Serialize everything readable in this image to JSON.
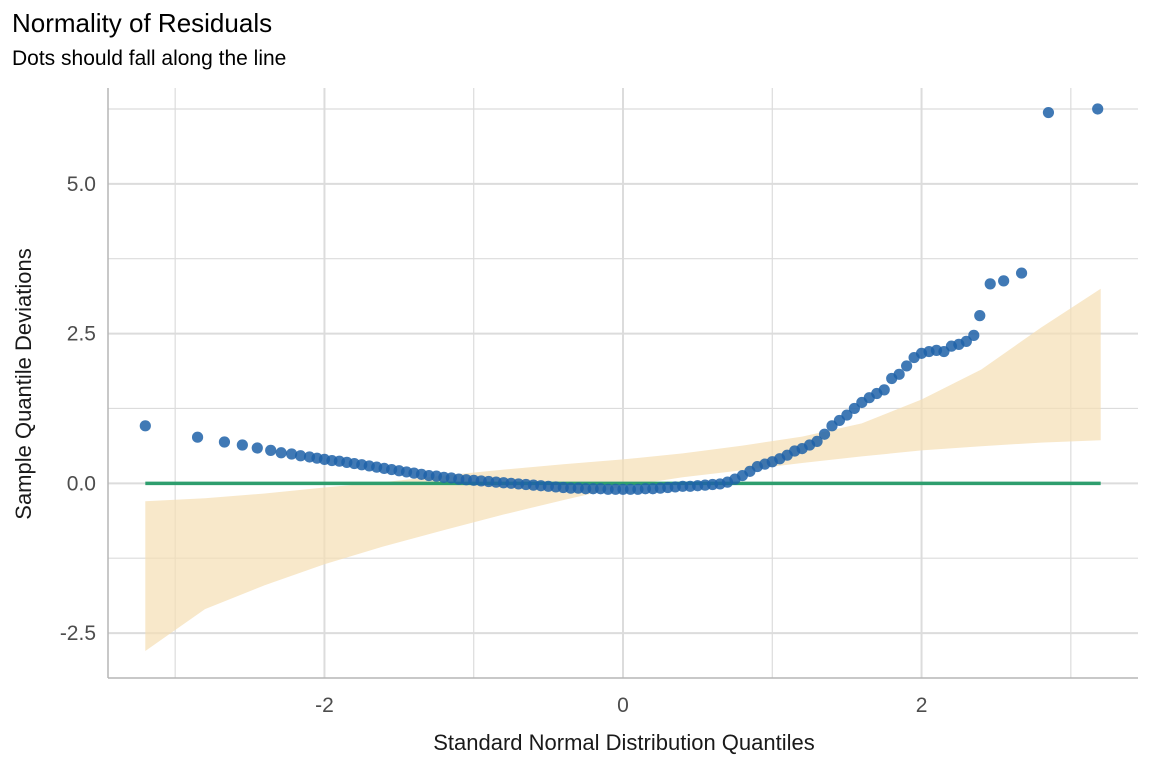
{
  "chart_data": {
    "type": "scatter",
    "title": "Normality of Residuals",
    "subtitle": "Dots should fall along the line",
    "xlabel": "Standard Normal Distribution Quantiles",
    "ylabel": "Sample Quantile Deviations",
    "xlim": [
      -3.45,
      3.45
    ],
    "ylim": [
      -3.25,
      6.6
    ],
    "x_ticks": [
      -2,
      0,
      2
    ],
    "x_tick_labels": [
      "-2",
      "0",
      "2"
    ],
    "y_ticks": [
      -2.5,
      0,
      2.5,
      5
    ],
    "y_tick_labels": [
      "-2.5",
      "0.0",
      "2.5",
      "5.0"
    ],
    "x_minor_ticks": [
      -3,
      -1,
      1,
      3
    ],
    "y_minor_ticks": [
      -1.25,
      1.25,
      3.75,
      6.25
    ],
    "grid": true,
    "colors": {
      "points": "#1f62a8",
      "reference_line": "#2e9e6e",
      "band": "#f5deb3",
      "grid": "#dcdcdc",
      "axis": "#b5b5b5"
    },
    "reference_line": {
      "x": [
        -3.2,
        3.2
      ],
      "y": [
        0,
        0
      ]
    },
    "confidence_band": {
      "x": [
        -3.2,
        -2.8,
        -2.4,
        -2.0,
        -1.6,
        -1.2,
        -0.8,
        -0.4,
        0.0,
        0.4,
        0.8,
        1.2,
        1.6,
        2.0,
        2.4,
        2.8,
        3.2
      ],
      "upper": [
        -0.3,
        -0.25,
        -0.17,
        -0.07,
        0.02,
        0.13,
        0.23,
        0.32,
        0.4,
        0.5,
        0.63,
        0.78,
        1.0,
        1.4,
        1.9,
        2.6,
        3.25
      ],
      "lower": [
        -2.8,
        -2.1,
        -1.7,
        -1.35,
        -1.05,
        -0.78,
        -0.52,
        -0.28,
        -0.05,
        0.1,
        0.22,
        0.34,
        0.45,
        0.55,
        0.62,
        0.68,
        0.72
      ]
    },
    "points": {
      "x": [
        -3.2,
        -2.85,
        -2.67,
        -2.55,
        -2.45,
        -2.36,
        -2.29,
        -2.22,
        -2.16,
        -2.1,
        -2.05,
        -2.0,
        -1.95,
        -1.9,
        -1.85,
        -1.8,
        -1.75,
        -1.7,
        -1.65,
        -1.6,
        -1.55,
        -1.5,
        -1.45,
        -1.4,
        -1.35,
        -1.3,
        -1.25,
        -1.2,
        -1.15,
        -1.1,
        -1.05,
        -1.0,
        -0.95,
        -0.9,
        -0.85,
        -0.8,
        -0.75,
        -0.7,
        -0.65,
        -0.6,
        -0.55,
        -0.5,
        -0.45,
        -0.4,
        -0.35,
        -0.3,
        -0.25,
        -0.2,
        -0.15,
        -0.1,
        -0.05,
        0.0,
        0.05,
        0.1,
        0.15,
        0.2,
        0.25,
        0.3,
        0.35,
        0.4,
        0.45,
        0.5,
        0.55,
        0.6,
        0.65,
        0.7,
        0.75,
        0.8,
        0.85,
        0.9,
        0.95,
        1.0,
        1.05,
        1.1,
        1.15,
        1.2,
        1.25,
        1.3,
        1.35,
        1.4,
        1.45,
        1.5,
        1.55,
        1.6,
        1.65,
        1.7,
        1.75,
        1.8,
        1.85,
        1.9,
        1.95,
        2.0,
        2.05,
        2.1,
        2.15,
        2.2,
        2.25,
        2.3,
        2.35,
        2.39,
        2.46,
        2.55,
        2.67,
        2.85,
        3.18
      ],
      "y": [
        0.96,
        0.77,
        0.69,
        0.64,
        0.59,
        0.55,
        0.51,
        0.49,
        0.46,
        0.44,
        0.42,
        0.4,
        0.38,
        0.37,
        0.35,
        0.33,
        0.31,
        0.29,
        0.27,
        0.25,
        0.23,
        0.21,
        0.19,
        0.17,
        0.15,
        0.13,
        0.12,
        0.1,
        0.09,
        0.07,
        0.06,
        0.05,
        0.04,
        0.03,
        0.02,
        0.01,
        0.0,
        -0.01,
        -0.02,
        -0.03,
        -0.04,
        -0.05,
        -0.06,
        -0.07,
        -0.08,
        -0.08,
        -0.09,
        -0.09,
        -0.09,
        -0.1,
        -0.1,
        -0.1,
        -0.1,
        -0.1,
        -0.09,
        -0.09,
        -0.08,
        -0.07,
        -0.06,
        -0.05,
        -0.05,
        -0.04,
        -0.03,
        -0.02,
        -0.01,
        0.02,
        0.07,
        0.13,
        0.2,
        0.28,
        0.32,
        0.36,
        0.41,
        0.47,
        0.54,
        0.58,
        0.64,
        0.7,
        0.82,
        0.96,
        1.05,
        1.14,
        1.25,
        1.35,
        1.43,
        1.5,
        1.56,
        1.75,
        1.82,
        1.96,
        2.1,
        2.17,
        2.2,
        2.22,
        2.2,
        2.29,
        2.32,
        2.37,
        2.47,
        2.8,
        3.33,
        3.38,
        3.51,
        6.19,
        6.25
      ]
    }
  }
}
